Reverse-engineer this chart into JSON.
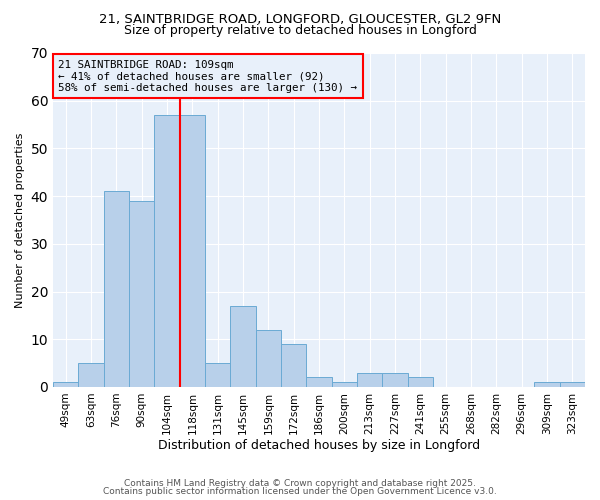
{
  "title1": "21, SAINTBRIDGE ROAD, LONGFORD, GLOUCESTER, GL2 9FN",
  "title2": "Size of property relative to detached houses in Longford",
  "xlabel": "Distribution of detached houses by size in Longford",
  "ylabel": "Number of detached properties",
  "categories": [
    "49sqm",
    "63sqm",
    "76sqm",
    "90sqm",
    "104sqm",
    "118sqm",
    "131sqm",
    "145sqm",
    "159sqm",
    "172sqm",
    "186sqm",
    "200sqm",
    "213sqm",
    "227sqm",
    "241sqm",
    "255sqm",
    "268sqm",
    "282sqm",
    "296sqm",
    "309sqm",
    "323sqm"
  ],
  "values": [
    1,
    5,
    41,
    39,
    57,
    57,
    5,
    17,
    12,
    9,
    2,
    1,
    3,
    3,
    2,
    0,
    0,
    0,
    0,
    1,
    1
  ],
  "bar_color": "#b8d0ea",
  "bar_edge_color": "#6aaad4",
  "vline_x_index": 4.5,
  "vline_color": "red",
  "ylim": [
    0,
    70
  ],
  "yticks": [
    0,
    10,
    20,
    30,
    40,
    50,
    60,
    70
  ],
  "annotation_title": "21 SAINTBRIDGE ROAD: 109sqm",
  "annotation_line1": "← 41% of detached houses are smaller (92)",
  "annotation_line2": "58% of semi-detached houses are larger (130) →",
  "annotation_box_color": "red",
  "plot_bg_color": "#e8f0fa",
  "fig_bg_color": "#ffffff",
  "footer1": "Contains HM Land Registry data © Crown copyright and database right 2025.",
  "footer2": "Contains public sector information licensed under the Open Government Licence v3.0.",
  "grid_color": "#ffffff",
  "tick_label_fontsize": 7.5,
  "xlabel_fontsize": 9,
  "ylabel_fontsize": 8,
  "title1_fontsize": 9.5,
  "title2_fontsize": 9
}
